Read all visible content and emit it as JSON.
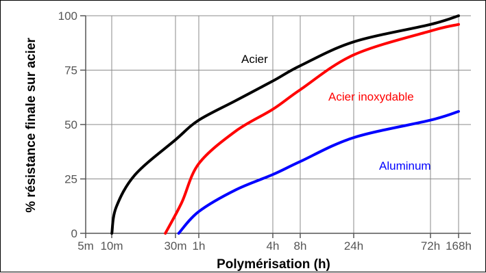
{
  "chart_data": {
    "type": "line",
    "xlabel": "Polymérisation (h)",
    "ylabel": "% résistance finale sur acier",
    "x_scale": "log",
    "x_ticks": [
      {
        "label": "5m",
        "hours": 0.0833
      },
      {
        "label": "10m",
        "hours": 0.1667
      },
      {
        "label": "30m",
        "hours": 0.5
      },
      {
        "label": "1h",
        "hours": 1
      },
      {
        "label": "4h",
        "hours": 4
      },
      {
        "label": "8h",
        "hours": 8
      },
      {
        "label": "24h",
        "hours": 24
      },
      {
        "label": "72h",
        "hours": 72
      },
      {
        "label": "168h",
        "hours": 168
      }
    ],
    "y_ticks": [
      0,
      25,
      50,
      75,
      100
    ],
    "ylim": [
      0,
      100
    ],
    "grid": true,
    "series": [
      {
        "name": "Acier",
        "color": "#000000",
        "points": [
          [
            0.167,
            0
          ],
          [
            0.18,
            12
          ],
          [
            0.25,
            27
          ],
          [
            0.5,
            43
          ],
          [
            1,
            52
          ],
          [
            2,
            61
          ],
          [
            4,
            70
          ],
          [
            8,
            77
          ],
          [
            24,
            88
          ],
          [
            72,
            96
          ],
          [
            168,
            100
          ]
        ]
      },
      {
        "name": "Acier inoxydable",
        "color": "#ff0000",
        "points": [
          [
            0.42,
            0
          ],
          [
            0.6,
            14
          ],
          [
            1,
            32
          ],
          [
            2,
            47
          ],
          [
            4,
            57
          ],
          [
            8,
            66
          ],
          [
            24,
            82
          ],
          [
            72,
            93
          ],
          [
            168,
            96
          ]
        ]
      },
      {
        "name": "Aluminum",
        "color": "#0000ff",
        "points": [
          [
            0.55,
            0
          ],
          [
            1,
            10
          ],
          [
            2,
            20
          ],
          [
            4,
            27
          ],
          [
            8,
            33
          ],
          [
            24,
            44
          ],
          [
            72,
            52
          ],
          [
            168,
            56
          ]
        ]
      }
    ]
  }
}
